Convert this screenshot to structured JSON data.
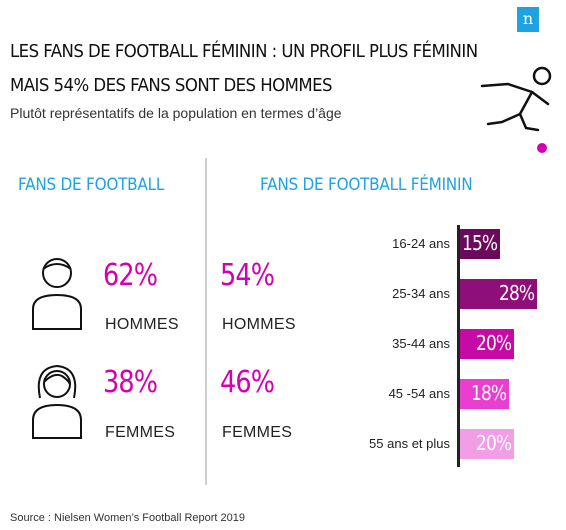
{
  "brand": {
    "logo_letter": "n",
    "logo_color": "#1fa3e0"
  },
  "header": {
    "title_line1": "LES FANS DE FOOTBALL FÉMININ : UN PROFIL PLUS FÉMININ",
    "title_line2": "MAIS 54% DES FANS SONT DES HOMMES",
    "subtitle": "Plutôt représentatifs de la population en termes d’âge"
  },
  "icons": {
    "player": "football-player-icon",
    "man": "man-icon",
    "woman": "woman-icon"
  },
  "football_fans": {
    "heading": "FANS DE FOOTBALL",
    "men": {
      "pct": "62%",
      "label": "HOMMES"
    },
    "women": {
      "pct": "38%",
      "label": "FEMMES"
    }
  },
  "womens_football_fans": {
    "heading": "FANS DE FOOTBALL FÉMININ",
    "men": {
      "pct": "54%",
      "label": "HOMMES"
    },
    "women": {
      "pct": "46%",
      "label": "FEMMES"
    }
  },
  "chart_data": {
    "type": "bar",
    "orientation": "horizontal",
    "categories": [
      "16-24 ans",
      "25-34 ans",
      "35-44 ans",
      "45 -54 ans",
      "55 ans et plus"
    ],
    "values": [
      15,
      28,
      20,
      18,
      20
    ],
    "value_labels": [
      "15%",
      "28%",
      "20%",
      "18%",
      "20%"
    ],
    "colors": [
      "#6b0a5b",
      "#8e0e7a",
      "#c70aa6",
      "#ea3ed0",
      "#f29ee6"
    ],
    "xlim": [
      0,
      28
    ]
  },
  "source": "Source : Nielsen Women’s Football Report 2019",
  "colors": {
    "accent_blue": "#1fa3e0",
    "accent_magenta": "#d400b0"
  }
}
